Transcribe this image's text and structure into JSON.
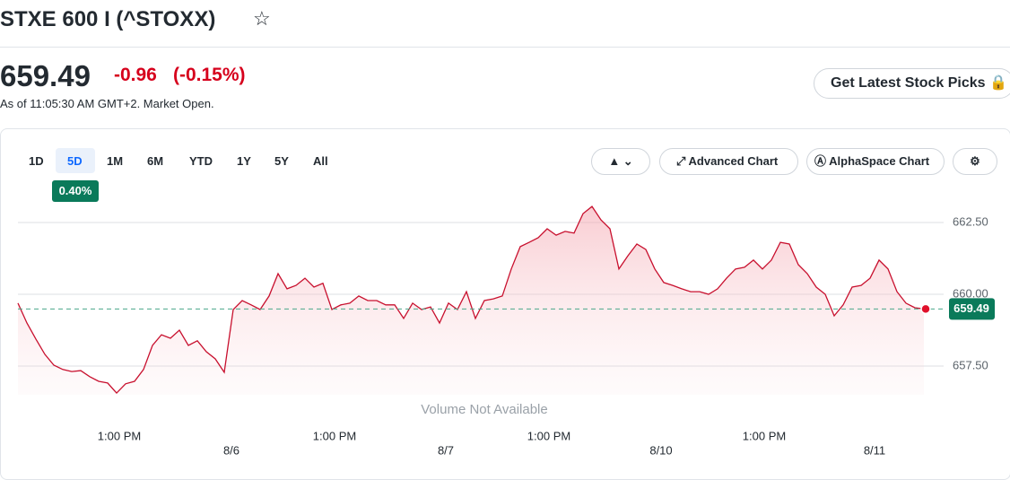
{
  "header": {
    "title": "STXE 600 I (^STOXX)",
    "price": "659.49",
    "change": "-0.96",
    "change_percent": "(-0.15%)",
    "as_of": "As of 11:05:30 AM GMT+2. Market Open.",
    "button": "Get Latest Stock Picks"
  },
  "toolbar": {
    "ranges": [
      "1D",
      "5D",
      "1M",
      "6M",
      "YTD",
      "1Y",
      "5Y",
      "All"
    ],
    "selected_badge": "0.40%",
    "advanced": "Advanced Chart",
    "alphaspace": "AlphaSpace Chart"
  },
  "chart_data": {
    "type": "line",
    "color": "#c8102e",
    "values": [
      659.69,
      659.0,
      658.44,
      657.91,
      657.53,
      657.38,
      657.31,
      657.34,
      657.13,
      656.97,
      656.91,
      656.56,
      656.88,
      656.97,
      657.38,
      658.22,
      658.59,
      658.47,
      658.75,
      658.22,
      658.38,
      658.0,
      657.75,
      657.28,
      659.47,
      659.78,
      659.63,
      659.47,
      659.94,
      660.72,
      660.19,
      660.31,
      660.56,
      660.25,
      660.38,
      659.47,
      659.63,
      659.69,
      659.94,
      659.78,
      659.78,
      659.63,
      659.63,
      659.16,
      659.69,
      659.47,
      659.56,
      659.0,
      659.69,
      659.47,
      660.09,
      659.16,
      659.78,
      659.84,
      659.94,
      660.88,
      661.66,
      661.81,
      661.97,
      662.28,
      662.06,
      662.19,
      662.13,
      662.81,
      663.06,
      662.59,
      662.28,
      660.88,
      661.34,
      661.75,
      661.56,
      660.88,
      660.41,
      660.31,
      660.19,
      660.09,
      660.09,
      660.0,
      660.19,
      660.56,
      660.88,
      660.94,
      661.19,
      660.88,
      661.19,
      661.81,
      661.75,
      661.03,
      660.72,
      660.25,
      660.0,
      659.25,
      659.63,
      660.25,
      660.31,
      660.56,
      661.19,
      660.88,
      660.09,
      659.69,
      659.53,
      659.49
    ],
    "current_value": 659.49,
    "xlim": [
      0,
      101.5
    ],
    "xticks": [
      {
        "value": 11.3,
        "label": "1:00 PM"
      },
      {
        "value": 23.8,
        "label": "8/6"
      },
      {
        "value": 35.3,
        "label": "1:00 PM"
      },
      {
        "value": 47.7,
        "label": "8/7"
      },
      {
        "value": 59.2,
        "label": "1:00 PM"
      },
      {
        "value": 71.7,
        "label": "8/10"
      },
      {
        "value": 83.2,
        "label": "1:00 PM"
      },
      {
        "value": 95.5,
        "label": "8/11"
      }
    ],
    "ylim": [
      656.5,
      663.7
    ],
    "yticks": [
      {
        "value": 657.5,
        "label": "657.50"
      },
      {
        "value": 660,
        "label": "660.00"
      },
      {
        "value": 662.5,
        "label": "662.50"
      }
    ],
    "grid": true,
    "note": "Volume Not Available"
  }
}
